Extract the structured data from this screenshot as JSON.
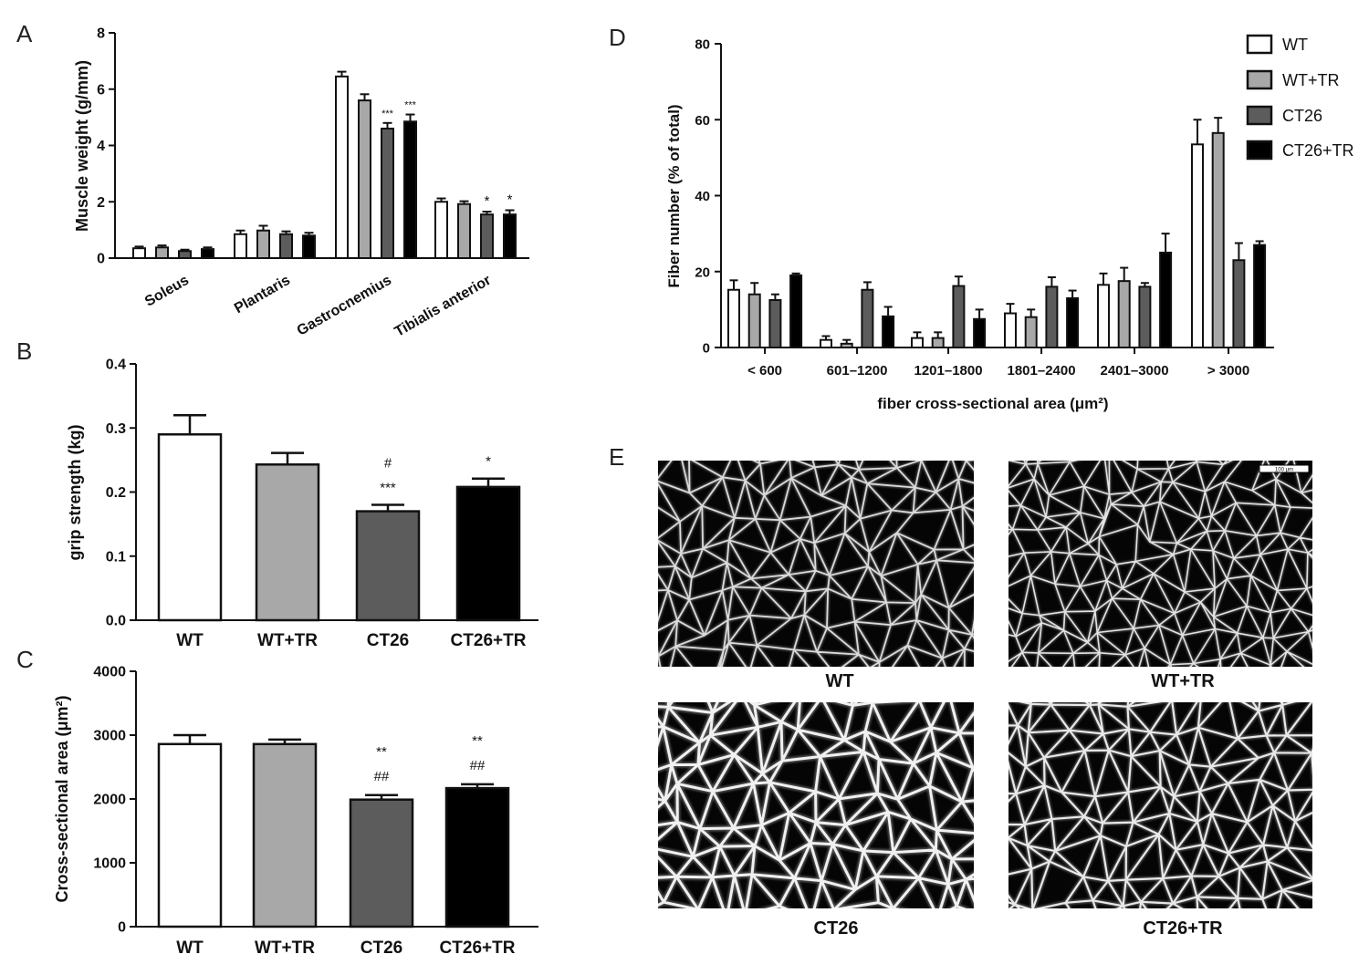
{
  "series_colors": {
    "WT": "#ffffff",
    "WT+TR": "#a8a8a8",
    "CT26": "#5c5c5c",
    "CT26+TR": "#000000"
  },
  "chart_data": [
    {
      "panel": "A",
      "type": "bar",
      "ylabel": "Muscle weight (g/mm)",
      "xlabel": "",
      "ylim": [
        0,
        8
      ],
      "yticks": [
        "0",
        "2",
        "4",
        "6",
        "8"
      ],
      "categories": [
        "Soleus",
        "Plantaris",
        "Gastrocnemius",
        "Tibialis anterior"
      ],
      "series": [
        {
          "name": "WT",
          "values": [
            0.35,
            0.85,
            6.45,
            2.0
          ],
          "errors": [
            0.06,
            0.13,
            0.17,
            0.12
          ]
        },
        {
          "name": "WT+TR",
          "values": [
            0.38,
            0.98,
            5.6,
            1.92
          ],
          "errors": [
            0.07,
            0.17,
            0.22,
            0.1
          ]
        },
        {
          "name": "CT26",
          "values": [
            0.25,
            0.85,
            4.6,
            1.55
          ],
          "errors": [
            0.05,
            0.1,
            0.2,
            0.1
          ]
        },
        {
          "name": "CT26+TR",
          "values": [
            0.32,
            0.8,
            4.85,
            1.55
          ],
          "errors": [
            0.06,
            0.1,
            0.25,
            0.15
          ]
        }
      ],
      "annotations": [
        {
          "category": "Gastrocnemius",
          "series": "CT26",
          "text": "***"
        },
        {
          "category": "Gastrocnemius",
          "series": "CT26+TR",
          "text": "***"
        },
        {
          "category": "Tibialis anterior",
          "series": "CT26",
          "text": "*"
        },
        {
          "category": "Tibialis anterior",
          "series": "CT26+TR",
          "text": "*"
        }
      ]
    },
    {
      "panel": "B",
      "type": "bar",
      "ylabel": "grip strength (kg)",
      "xlabel": "",
      "ylim": [
        0,
        0.4
      ],
      "yticks": [
        "0.0",
        "0.1",
        "0.2",
        "0.3",
        "0.4"
      ],
      "categories": [
        "WT",
        "WT+TR",
        "CT26",
        "CT26+TR"
      ],
      "values": [
        0.29,
        0.243,
        0.17,
        0.208
      ],
      "errors": [
        0.03,
        0.018,
        0.01,
        0.013
      ],
      "annotations": [
        {
          "category": "CT26",
          "lines": [
            "#",
            "***"
          ]
        },
        {
          "category": "CT26+TR",
          "lines": [
            "*"
          ]
        }
      ]
    },
    {
      "panel": "C",
      "type": "bar",
      "ylabel": "Cross-sectional area (μm²)",
      "xlabel": "",
      "ylim": [
        0,
        4000
      ],
      "yticks": [
        "0",
        "1000",
        "2000",
        "3000",
        "4000"
      ],
      "categories": [
        "WT",
        "WT+TR",
        "CT26",
        "CT26+TR"
      ],
      "values": [
        2860,
        2860,
        1990,
        2170
      ],
      "errors": [
        140,
        70,
        70,
        60
      ],
      "annotations": [
        {
          "category": "CT26",
          "lines": [
            "**",
            "##"
          ]
        },
        {
          "category": "CT26+TR",
          "lines": [
            "**",
            "##"
          ]
        }
      ]
    },
    {
      "panel": "D",
      "type": "bar",
      "ylabel": "Fiber number (% of total)",
      "xlabel": "fiber cross-sectional area (μm²)",
      "ylim": [
        0,
        80
      ],
      "yticks": [
        "0",
        "20",
        "40",
        "60",
        "80"
      ],
      "categories": [
        "< 600",
        "601–1200",
        "1201–1800",
        "1801–2400",
        "2401–3000",
        "> 3000"
      ],
      "legend": [
        "WT",
        "WT+TR",
        "CT26",
        "CT26+TR"
      ],
      "legend_position": "top-right",
      "series": [
        {
          "name": "WT",
          "values": [
            15.2,
            2,
            2.5,
            9,
            16.5,
            53.5
          ],
          "errors": [
            2.5,
            1,
            1.5,
            2.5,
            3,
            6.5
          ]
        },
        {
          "name": "WT+TR",
          "values": [
            14,
            1,
            2.5,
            8,
            17.5,
            56.5
          ],
          "errors": [
            3,
            1,
            1.5,
            2,
            3.5,
            4
          ]
        },
        {
          "name": "CT26",
          "values": [
            12.5,
            15.2,
            16.2,
            16,
            16,
            23
          ],
          "errors": [
            1.5,
            2,
            2.5,
            2.5,
            1,
            4.5
          ]
        },
        {
          "name": "CT26+TR",
          "values": [
            19,
            8.2,
            7.5,
            13,
            25,
            27
          ],
          "errors": [
            0.5,
            2.5,
            2.5,
            2,
            5,
            1
          ]
        }
      ]
    }
  ],
  "panel_labels": {
    "a": "A",
    "b": "B",
    "c": "C",
    "d": "D",
    "e": "E"
  },
  "micrographs": {
    "panel": "E",
    "labels": [
      "WT",
      "WT+TR",
      "CT26",
      "CT26+TR"
    ],
    "scale_bar_text": "100 μm"
  }
}
